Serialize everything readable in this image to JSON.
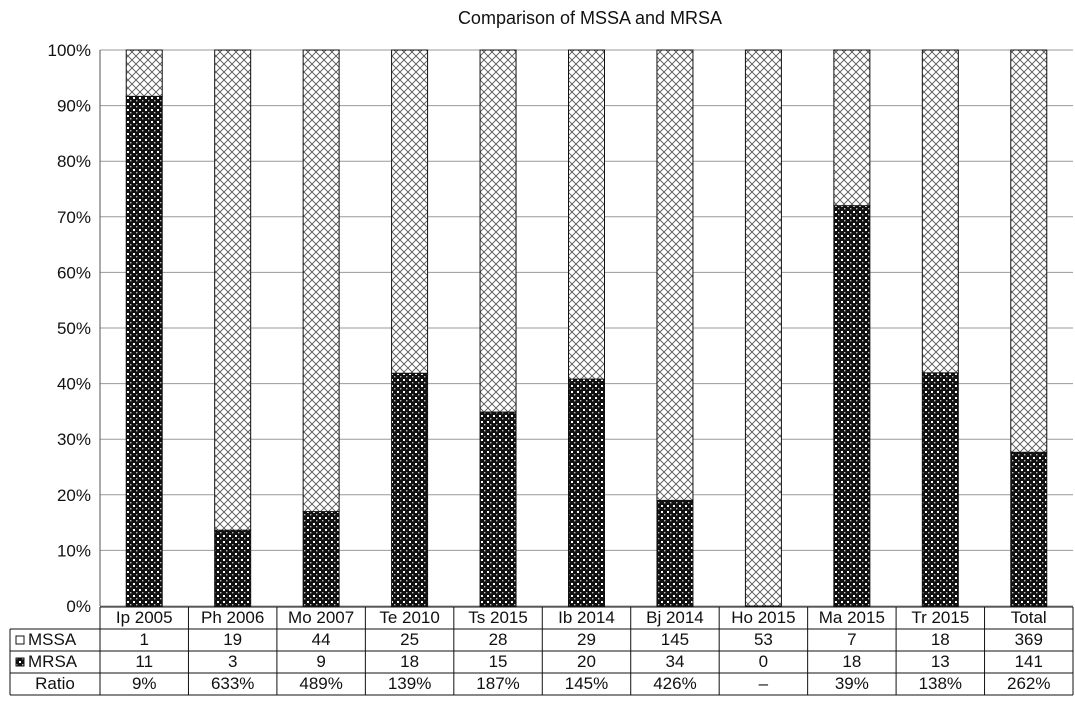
{
  "chart_data": {
    "type": "bar",
    "stacked": "percent",
    "title": "Comparison of MSSA and MRSA",
    "categories": [
      "Ip 2005",
      "Ph 2006",
      "Mo 2007",
      "Te 2010",
      "Ts 2015",
      "Ib 2014",
      "Bj 2014",
      "Ho 2015",
      "Ma 2015",
      "Tr 2015",
      "Total"
    ],
    "yticks": [
      "0%",
      "10%",
      "20%",
      "30%",
      "40%",
      "50%",
      "60%",
      "70%",
      "80%",
      "90%",
      "100%"
    ],
    "ylim": [
      0,
      100
    ],
    "grid": true,
    "series": [
      {
        "name": "MRSA",
        "values": [
          11,
          3,
          9,
          18,
          15,
          20,
          34,
          0,
          18,
          13,
          141
        ],
        "pattern": "checker",
        "color": "#111111"
      },
      {
        "name": "MSSA",
        "values": [
          1,
          19,
          44,
          25,
          28,
          29,
          145,
          53,
          7,
          18,
          369
        ],
        "pattern": "crosshatch",
        "color": "#555555"
      }
    ],
    "table_rows": [
      {
        "label": "MSSA",
        "marker": "crosshatch",
        "values": [
          "1",
          "19",
          "44",
          "25",
          "28",
          "29",
          "145",
          "53",
          "7",
          "18",
          "369"
        ]
      },
      {
        "label": "MRSA",
        "marker": "checker",
        "values": [
          "11",
          "3",
          "9",
          "18",
          "15",
          "20",
          "34",
          "0",
          "18",
          "13",
          "141"
        ]
      },
      {
        "label": "Ratio",
        "marker": "",
        "values": [
          "9%",
          "633%",
          "489%",
          "139%",
          "187%",
          "145%",
          "426%",
          "–",
          "39%",
          "138%",
          "262%"
        ]
      }
    ]
  }
}
